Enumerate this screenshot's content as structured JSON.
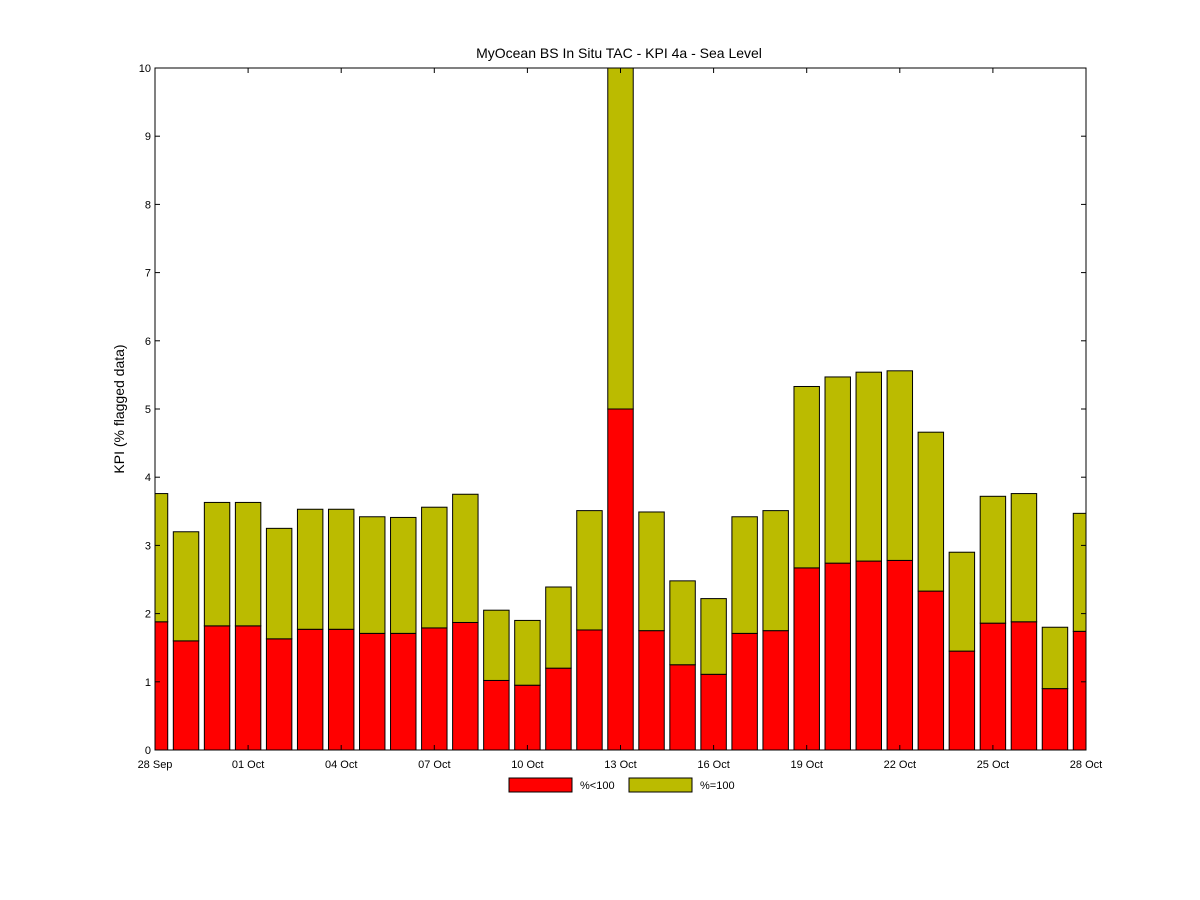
{
  "chart_data": {
    "type": "bar",
    "stacked": true,
    "title": "MyOcean  BS In Situ TAC - KPI 4a - Sea Level",
    "ylabel": "KPI (% flagged data)",
    "xlabel": "",
    "ylim": [
      0,
      10
    ],
    "yticks": [
      "0",
      "1",
      "2",
      "3",
      "4",
      "5",
      "6",
      "7",
      "8",
      "9",
      "10"
    ],
    "xlim": [
      "2012-09-28",
      "2012-10-28"
    ],
    "xticks": [
      {
        "date": "2012-09-28",
        "label": "28 Sep"
      },
      {
        "date": "2012-10-01",
        "label": "01 Oct"
      },
      {
        "date": "2012-10-04",
        "label": "04 Oct"
      },
      {
        "date": "2012-10-07",
        "label": "07 Oct"
      },
      {
        "date": "2012-10-10",
        "label": "10 Oct"
      },
      {
        "date": "2012-10-13",
        "label": "13 Oct"
      },
      {
        "date": "2012-10-16",
        "label": "16 Oct"
      },
      {
        "date": "2012-10-19",
        "label": "19 Oct"
      },
      {
        "date": "2012-10-22",
        "label": "22 Oct"
      },
      {
        "date": "2012-10-25",
        "label": "25 Oct"
      },
      {
        "date": "2012-10-28",
        "label": "28 Oct"
      }
    ],
    "x": [
      "2012-09-28",
      "2012-09-29",
      "2012-09-30",
      "2012-10-01",
      "2012-10-02",
      "2012-10-03",
      "2012-10-04",
      "2012-10-05",
      "2012-10-06",
      "2012-10-07",
      "2012-10-08",
      "2012-10-09",
      "2012-10-10",
      "2012-10-11",
      "2012-10-12",
      "2012-10-13",
      "2012-10-14",
      "2012-10-15",
      "2012-10-16",
      "2012-10-17",
      "2012-10-18",
      "2012-10-19",
      "2012-10-20",
      "2012-10-21",
      "2012-10-22",
      "2012-10-23",
      "2012-10-24",
      "2012-10-25",
      "2012-10-26",
      "2012-10-27",
      "2012-10-28"
    ],
    "series": [
      {
        "name": "%<100",
        "color": "#ff0000",
        "values": [
          1.88,
          1.6,
          1.82,
          1.82,
          1.63,
          1.77,
          1.77,
          1.71,
          1.71,
          1.79,
          1.87,
          1.02,
          0.95,
          1.2,
          1.76,
          5.0,
          1.75,
          1.25,
          1.11,
          1.71,
          1.75,
          2.67,
          2.74,
          2.77,
          2.78,
          2.33,
          1.45,
          1.86,
          1.88,
          0.9,
          1.74
        ]
      },
      {
        "name": "%=100",
        "color": "#bbbb00",
        "values": [
          1.88,
          1.6,
          1.81,
          1.81,
          1.62,
          1.76,
          1.76,
          1.71,
          1.7,
          1.77,
          1.88,
          1.03,
          0.95,
          1.19,
          1.75,
          5.0,
          1.74,
          1.23,
          1.11,
          1.71,
          1.76,
          2.66,
          2.73,
          2.77,
          2.78,
          2.33,
          1.45,
          1.86,
          1.88,
          0.9,
          1.73
        ]
      }
    ],
    "legend_position": "bottom-center",
    "grid": false
  }
}
